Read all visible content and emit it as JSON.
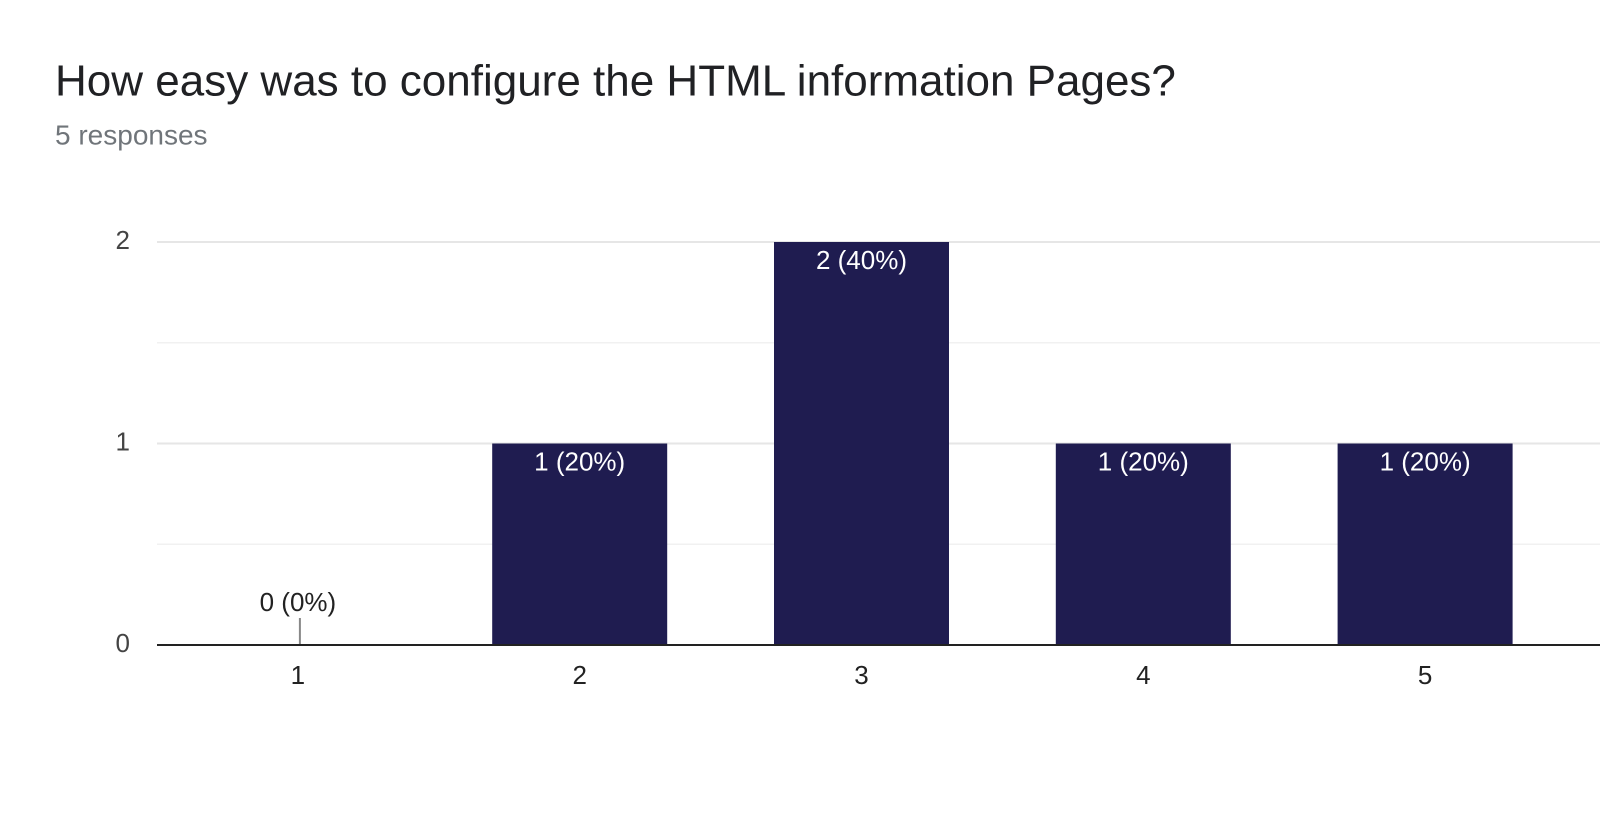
{
  "chart_data": {
    "type": "bar",
    "title": "How easy was to configure the HTML information Pages?",
    "subtitle": "5 responses",
    "categories": [
      "1",
      "2",
      "3",
      "4",
      "5"
    ],
    "values": [
      0,
      1,
      2,
      1,
      1
    ],
    "value_labels": [
      "0 (0%)",
      "1 (20%)",
      "2 (40%)",
      "1 (20%)",
      "1 (20%)"
    ],
    "color": "#1f1c50",
    "ylim": [
      0,
      2
    ],
    "yticks": [
      0,
      1,
      2
    ],
    "minor_yticks": [
      0.5,
      1.5
    ],
    "grid": true
  }
}
